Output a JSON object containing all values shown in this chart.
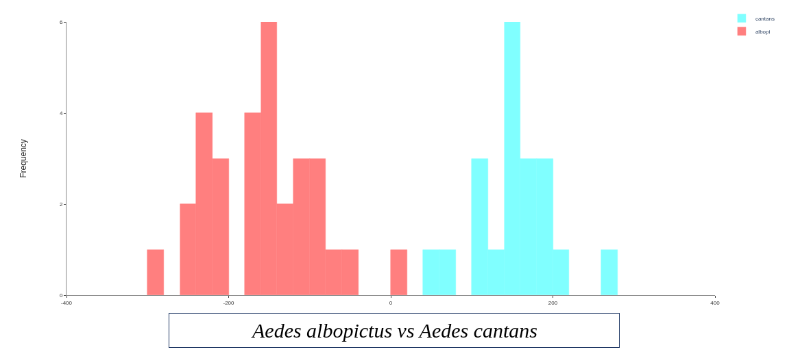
{
  "chart_data": {
    "type": "histogram",
    "ylabel": "Frequency",
    "bins": [
      -300,
      -280,
      -260,
      -240,
      -220,
      -200,
      -180,
      -160,
      -140,
      -120,
      -100,
      -80,
      -60,
      -40,
      -20,
      0,
      20,
      40,
      60,
      80,
      100,
      120,
      140,
      160,
      180,
      200,
      220,
      240,
      260,
      280
    ],
    "series": [
      {
        "name": "cantans",
        "color": "#80ffff",
        "values": [
          0,
          0,
          0,
          0,
          0,
          0,
          0,
          0,
          0,
          0,
          0,
          0,
          0,
          0,
          0,
          0,
          0,
          1,
          1,
          0,
          3,
          1,
          6,
          3,
          3,
          1,
          0,
          0,
          1
        ]
      },
      {
        "name": "albopi",
        "color": "#ff7f7f",
        "values": [
          1,
          0,
          2,
          4,
          3,
          0,
          4,
          6,
          2,
          3,
          3,
          1,
          1,
          0,
          0,
          1,
          0,
          0,
          0,
          0,
          0,
          0,
          0,
          0,
          0,
          0,
          0,
          0,
          0
        ]
      }
    ],
    "xlim": [
      -400,
      400
    ],
    "xticks": [
      -400,
      -200,
      0,
      200,
      400
    ],
    "ylim": [
      0,
      6
    ],
    "yticks": [
      0,
      2,
      4,
      6
    ],
    "legend": "top right",
    "annotations": [
      "Aedes albopictus vs Aedes cantans"
    ]
  }
}
